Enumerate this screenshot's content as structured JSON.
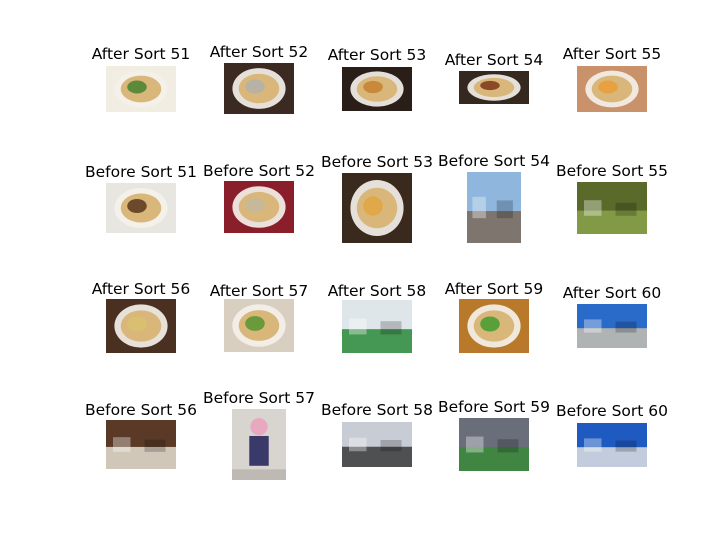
{
  "figure": {
    "rows": [
      {
        "cells": [
          {
            "label": "After Sort 51",
            "icon": "noodle-bowl-photo",
            "bg": "#f2ede2",
            "accent": "#5b8a3a",
            "kind": "bowl"
          },
          {
            "label": "After Sort 52",
            "icon": "noodle-bowl-photo",
            "bg": "#3a2a22",
            "accent": "#b8b2a4",
            "kind": "bowl"
          },
          {
            "label": "After Sort 53",
            "icon": "noodle-bowl-photo",
            "bg": "#2a1e18",
            "accent": "#c88a3a",
            "kind": "bowl"
          },
          {
            "label": "After Sort 54",
            "icon": "food-photo",
            "bg": "#34281f",
            "accent": "#8a4a28",
            "kind": "bowl"
          },
          {
            "label": "After Sort 55",
            "icon": "noodle-bowl-photo",
            "bg": "#c9926a",
            "accent": "#e8a040",
            "kind": "bowl"
          }
        ]
      },
      {
        "cells": [
          {
            "label": "Before Sort 51",
            "icon": "noodle-bowl-photo",
            "bg": "#e8e6e0",
            "accent": "#6a4a2a",
            "kind": "bowl"
          },
          {
            "label": "Before Sort 52",
            "icon": "noodle-bowl-photo",
            "bg": "#8a1e2a",
            "accent": "#c8b89a",
            "kind": "bowl"
          },
          {
            "label": "Before Sort 53",
            "icon": "noodle-bowl-photo",
            "bg": "#3a2a1e",
            "accent": "#e0a848",
            "kind": "bowl"
          },
          {
            "label": "Before Sort 54",
            "icon": "street-photo",
            "bg": "#8fb6dc",
            "accent": "#7a6a5a",
            "kind": "scene"
          },
          {
            "label": "Before Sort 55",
            "icon": "park-photo",
            "bg": "#5a6a2a",
            "accent": "#8aa24a",
            "kind": "scene"
          }
        ]
      },
      {
        "cells": [
          {
            "label": "After Sort 56",
            "icon": "food-photo",
            "bg": "#4a3020",
            "accent": "#d8c070",
            "kind": "bowl"
          },
          {
            "label": "After Sort 57",
            "icon": "noodle-bowl-photo",
            "bg": "#d8cfc0",
            "accent": "#6a9a3a",
            "kind": "bowl"
          },
          {
            "label": "After Sort 58",
            "icon": "truck-photo",
            "bg": "#dfe6ea",
            "accent": "#2a8a3a",
            "kind": "scene"
          },
          {
            "label": "After Sort 59",
            "icon": "noodle-bowl-photo",
            "bg": "#b87a2a",
            "accent": "#5aa03a",
            "kind": "bowl"
          },
          {
            "label": "After Sort 60",
            "icon": "landscape-photo",
            "bg": "#2a6ac8",
            "accent": "#c8c0b0",
            "kind": "scene"
          }
        ]
      },
      {
        "cells": [
          {
            "label": "Before Sort 56",
            "icon": "object-photo",
            "bg": "#5a3a26",
            "accent": "#e6e0d2",
            "kind": "scene"
          },
          {
            "label": "Before Sort 57",
            "icon": "figure-photo",
            "bg": "#d8d4d0",
            "accent": "#e8a8c0",
            "kind": "figure"
          },
          {
            "label": "Before Sort 58",
            "icon": "street-photo",
            "bg": "#c8ccd4",
            "accent": "#3a3a3a",
            "kind": "scene"
          },
          {
            "label": "Before Sort 59",
            "icon": "street-photo",
            "bg": "#6a6e7a",
            "accent": "#3a8a3a",
            "kind": "scene"
          },
          {
            "label": "Before Sort 60",
            "icon": "landscape-photo",
            "bg": "#1e5ac0",
            "accent": "#e0e0e0",
            "kind": "scene"
          }
        ]
      }
    ]
  }
}
